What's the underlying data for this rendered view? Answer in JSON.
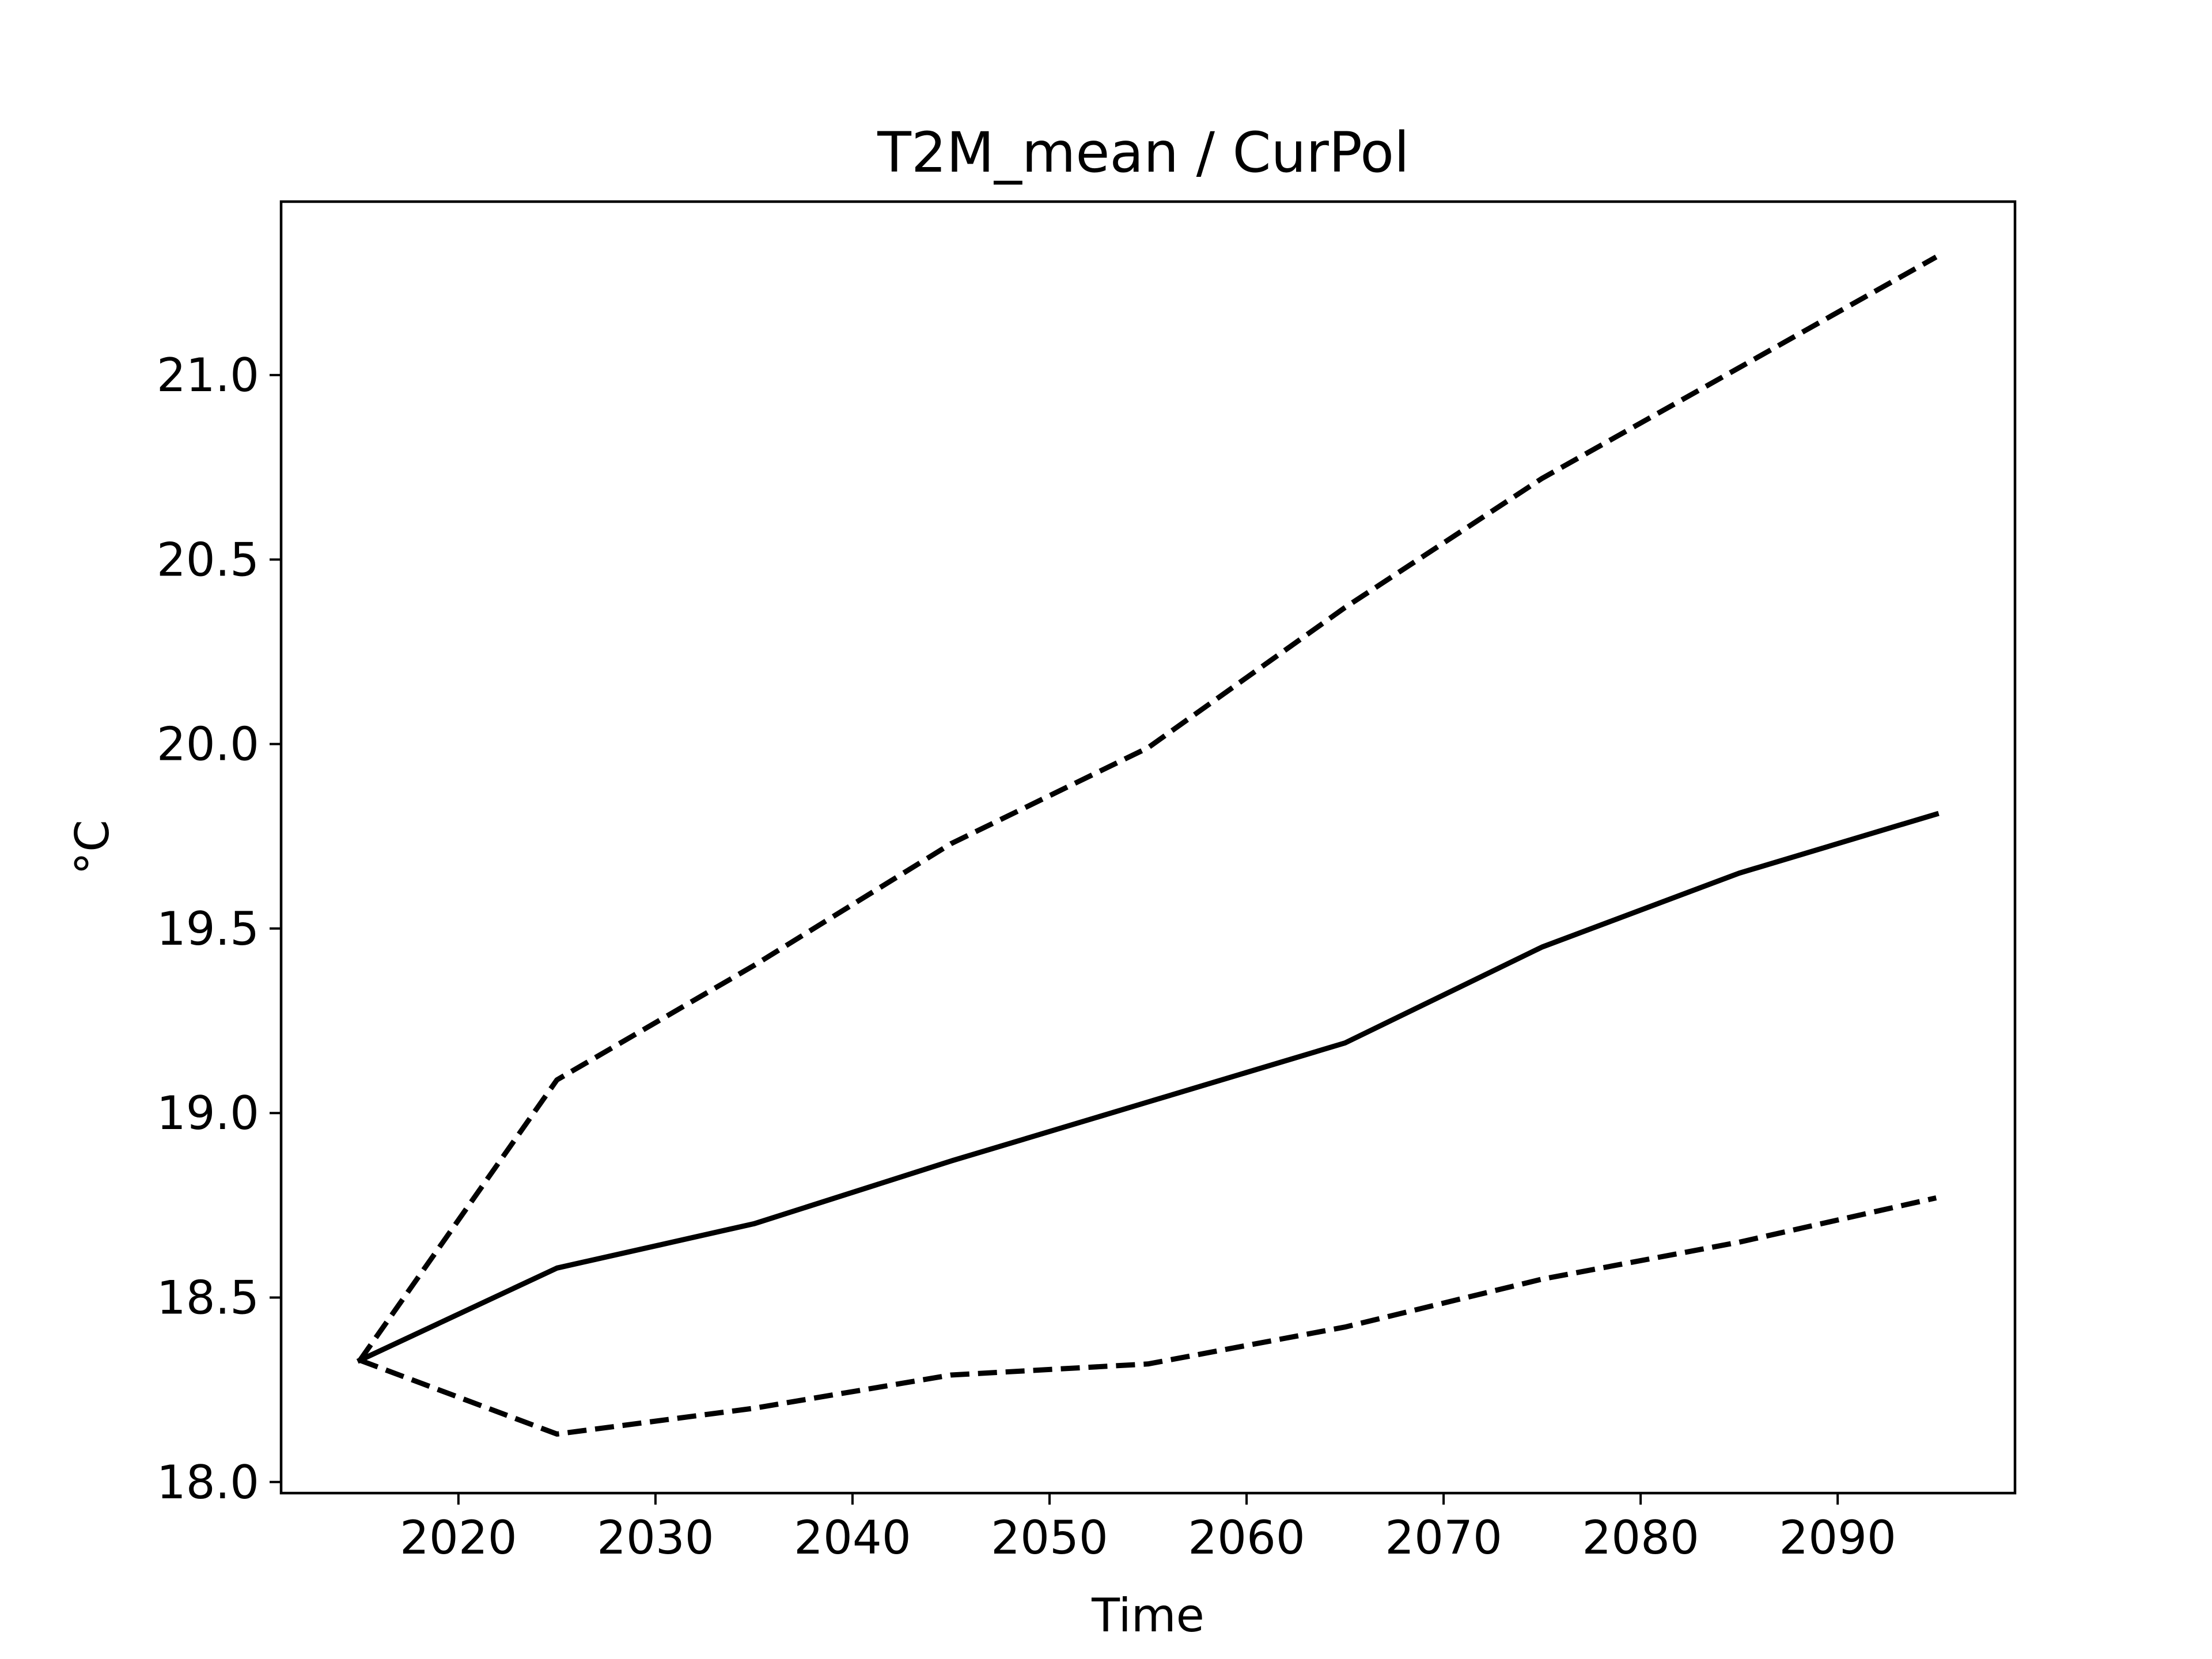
{
  "chart_data": {
    "type": "line",
    "title": "T2M_mean / CurPol",
    "xlabel": "Time",
    "ylabel": "°C",
    "xlim": [
      2011,
      2099
    ],
    "ylim": [
      17.97,
      21.47
    ],
    "x_ticks": [
      2020,
      2030,
      2040,
      2050,
      2060,
      2070,
      2080,
      2090
    ],
    "y_ticks": [
      18.0,
      18.5,
      19.0,
      19.5,
      20.0,
      20.5,
      21.0
    ],
    "grid": false,
    "legend": false,
    "x": [
      2015,
      2025,
      2035,
      2045,
      2055,
      2065,
      2075,
      2085,
      2095
    ],
    "series": [
      {
        "style": "dashed",
        "color": "#000000",
        "values": [
          18.33,
          19.09,
          19.4,
          19.73,
          19.99,
          20.37,
          20.72,
          21.02,
          21.32
        ]
      },
      {
        "style": "solid",
        "color": "#000000",
        "values": [
          18.33,
          18.58,
          18.7,
          18.87,
          19.03,
          19.19,
          19.45,
          19.65,
          19.81
        ]
      },
      {
        "style": "dashed",
        "color": "#000000",
        "values": [
          18.33,
          18.13,
          18.2,
          18.29,
          18.32,
          18.42,
          18.55,
          18.65,
          18.77
        ]
      }
    ]
  }
}
